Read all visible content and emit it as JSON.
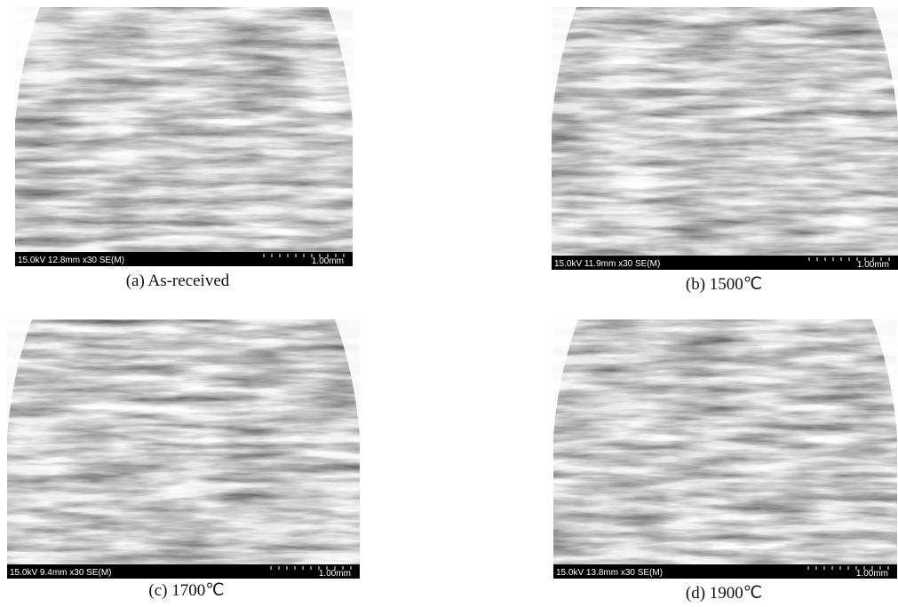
{
  "panels": [
    {
      "caption": "(a)  As-received",
      "info": "15.0kV 12.8mm x30 SE(M)",
      "scale": "1.00mm"
    },
    {
      "caption": "(b)  1500℃",
      "info": "15.0kV 11.9mm x30 SE(M)",
      "scale": "1.00mm"
    },
    {
      "caption": "(c)  1700℃",
      "info": "15.0kV 9.4mm x30 SE(M)",
      "scale": "1.00mm"
    },
    {
      "caption": "(d)  1900℃",
      "info": "15.0kV 13.8mm x30 SE(M)",
      "scale": "1.00mm"
    }
  ]
}
